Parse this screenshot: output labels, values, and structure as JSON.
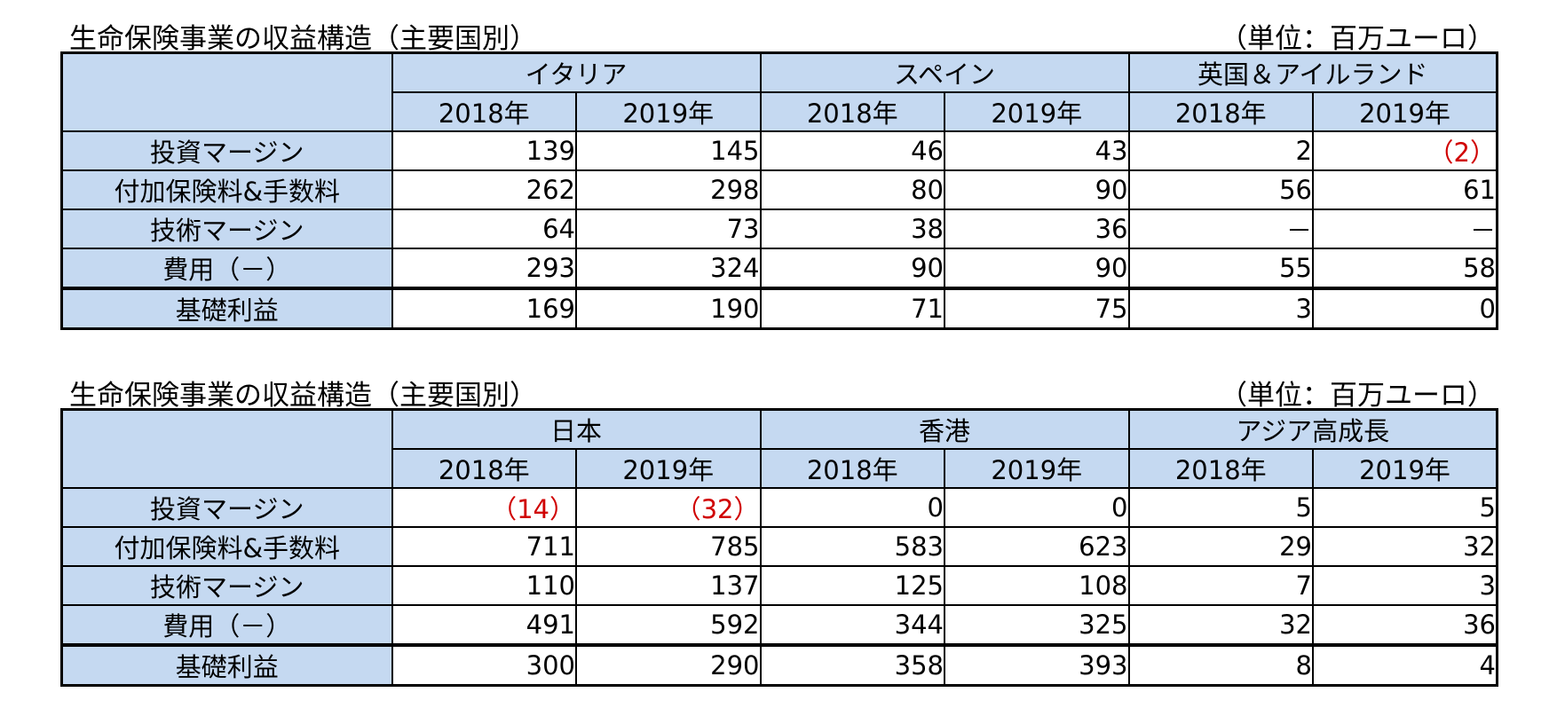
{
  "tables": [
    {
      "title": "生命保険事業の収益構造（主要国別）",
      "unit": "（単位：百万ユーロ）",
      "groups": [
        "イタリア",
        "スペイン",
        "英国＆アイルランド"
      ],
      "years": [
        "2018年",
        "2019年",
        "2018年",
        "2019年",
        "2018年",
        "2019年"
      ],
      "rows": [
        {
          "label": "投資マージン",
          "values": [
            "139",
            "145",
            "46",
            "43",
            "2",
            "（2）"
          ]
        },
        {
          "label": "付加保険料&手数料",
          "values": [
            "262",
            "298",
            "80",
            "90",
            "56",
            "61"
          ]
        },
        {
          "label": "技術マージン",
          "values": [
            "64",
            "73",
            "38",
            "36",
            "－",
            "－"
          ]
        },
        {
          "label": "費用（－）",
          "values": [
            "293",
            "324",
            "90",
            "90",
            "55",
            "58"
          ]
        },
        {
          "label": "基礎利益",
          "values": [
            "169",
            "190",
            "71",
            "75",
            "3",
            "0"
          ]
        }
      ]
    },
    {
      "title": "生命保険事業の収益構造（主要国別）",
      "unit": "（単位：百万ユーロ）",
      "groups": [
        "日本",
        "香港",
        "アジア高成長"
      ],
      "years": [
        "2018年",
        "2019年",
        "2018年",
        "2019年",
        "2018年",
        "2019年"
      ],
      "rows": [
        {
          "label": "投資マージン",
          "values": [
            "（14）",
            "（32）",
            "0",
            "0",
            "5",
            "5"
          ]
        },
        {
          "label": "付加保険料&手数料",
          "values": [
            "711",
            "785",
            "583",
            "623",
            "29",
            "32"
          ]
        },
        {
          "label": "技術マージン",
          "values": [
            "110",
            "137",
            "125",
            "108",
            "7",
            "3"
          ]
        },
        {
          "label": "費用（－）",
          "values": [
            "491",
            "592",
            "344",
            "325",
            "32",
            "36"
          ]
        },
        {
          "label": "基礎利益",
          "values": [
            "300",
            "290",
            "358",
            "393",
            "8",
            "4"
          ]
        }
      ]
    }
  ],
  "colors": {
    "header_bg": "#c5d9f1",
    "negative": "#d00000"
  }
}
